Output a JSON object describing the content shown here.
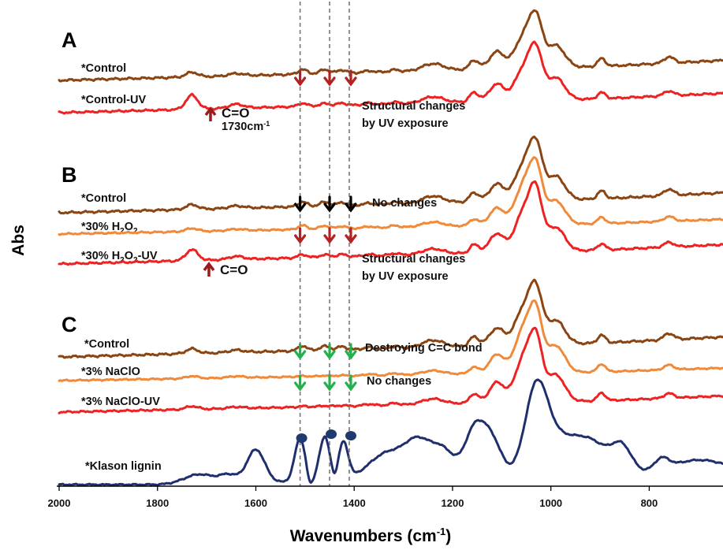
{
  "chart_data": {
    "type": "line",
    "xlabel": "Wavenumbers (cm⁻¹)",
    "xlabel_main": "Wavenumbers (cm",
    "xlabel_sup": "-1",
    "xlabel_close": ")",
    "ylabel": "Abs",
    "xlim": [
      2000,
      650
    ],
    "x_reversed": true,
    "x_ticks": [
      2000,
      1800,
      1600,
      1400,
      1200,
      1000,
      800
    ],
    "guide_lines_cm": [
      1510,
      1450,
      1410
    ],
    "panels": [
      {
        "label": "A",
        "series": [
          {
            "name": "*Control",
            "color": "#8B4513"
          },
          {
            "name": "*Control-UV",
            "color": "#EE2222"
          }
        ]
      },
      {
        "label": "B",
        "series": [
          {
            "name": "*Control",
            "color": "#8B4513"
          },
          {
            "name": "*30% H2O2",
            "name_main": "*30% H",
            "name_sub": "2",
            "name_tail": "O",
            "name_sub2": "2",
            "name_end": "",
            "color": "#F08A3A"
          },
          {
            "name": "*30% H2O2-UV",
            "name_main": "*30% H",
            "name_sub": "2",
            "name_tail": "O",
            "name_sub2": "2",
            "name_end": "-UV",
            "color": "#EE2222"
          }
        ]
      },
      {
        "label": "C",
        "series": [
          {
            "name": "*Control",
            "color": "#8B4513"
          },
          {
            "name": "*3% NaClO",
            "color": "#F08A3A"
          },
          {
            "name": "*3% NaClO-UV",
            "color": "#EE2222"
          }
        ]
      }
    ],
    "reference": {
      "name": "*Klason lignin",
      "color": "#1F2F6E"
    },
    "annotations": {
      "co_a": "C=O",
      "co_a_wn": "1730cm",
      "co_a_sup": "-1",
      "co_b": "C=O",
      "a_struct_1": "Structural changes",
      "a_struct_2": "by UV exposure",
      "b_nochange": "No changes",
      "b_struct_1": "Structural changes",
      "b_struct_2": "by UV exposure",
      "c_destroy": "Destroying C=C bond",
      "c_nochange": "No changes"
    },
    "colors": {
      "dashed": "#777777",
      "arrow_red": "#B22222",
      "arrow_black": "#000000",
      "arrow_green": "#22B14C",
      "arrow_up": "#9B1B1B",
      "dot": "#1F3A6E"
    }
  }
}
